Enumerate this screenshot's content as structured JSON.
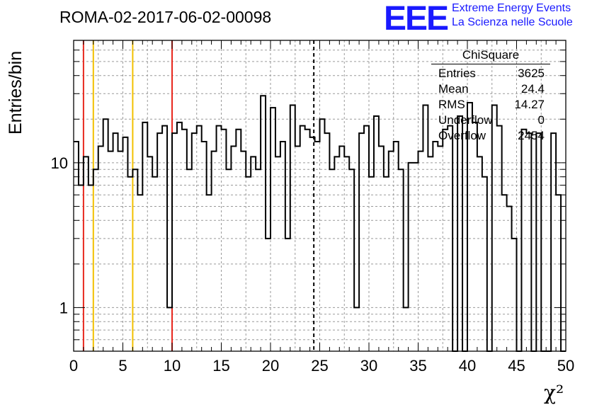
{
  "title": "ROMA-02-2017-06-02-00098",
  "brand": {
    "logo_text": "EEE",
    "line1": "Extreme Energy Events",
    "line2": "La Scienza nelle Scuole"
  },
  "stats": {
    "header": "ChiSquare",
    "rows": [
      {
        "label": "Entries",
        "value": "3625"
      },
      {
        "label": "Mean",
        "value": "24.4"
      },
      {
        "label": "RMS",
        "value": "14.27"
      },
      {
        "label": "Underflow",
        "value": "0"
      },
      {
        "label": "Overflow",
        "value": "2454"
      }
    ]
  },
  "chart_data": {
    "type": "histogram",
    "xlabel": "χ²",
    "ylabel": "Entries/bin",
    "xlim": [
      0,
      50
    ],
    "ylim": [
      0.5,
      70
    ],
    "yscale": "log",
    "grid": true,
    "bin_width": 0.5,
    "x_ticks": [
      "0",
      "5",
      "10",
      "15",
      "20",
      "25",
      "30",
      "35",
      "40",
      "45",
      "50"
    ],
    "y_ticks": [
      {
        "value": 1,
        "label": "1"
      },
      {
        "value": 10,
        "label": "10"
      }
    ],
    "values": [
      14,
      7,
      11,
      7,
      9,
      13,
      20,
      12,
      16,
      12,
      15,
      8,
      9,
      6,
      19,
      11,
      8,
      16,
      18,
      1,
      16,
      19,
      17,
      9,
      16,
      18,
      14,
      6,
      12,
      18,
      17,
      9,
      13,
      17,
      12,
      8,
      11,
      9,
      29,
      3,
      24,
      11,
      14,
      3,
      25,
      13,
      18,
      17,
      15,
      14,
      20,
      16,
      9,
      11,
      13,
      11,
      9,
      1,
      16,
      18,
      8,
      21,
      13,
      8,
      12,
      14,
      9,
      1,
      10,
      10,
      12,
      25,
      11,
      14,
      13,
      17,
      18,
      0,
      21,
      0,
      26,
      19,
      11,
      8,
      0,
      25,
      18,
      6,
      5,
      3,
      0,
      17,
      16,
      0,
      16,
      0,
      0,
      16,
      6,
      0
    ],
    "reference_lines": [
      {
        "x": 1,
        "color": "#e8281e",
        "style": "solid"
      },
      {
        "x": 2,
        "color": "#f2c000",
        "style": "solid"
      },
      {
        "x": 6,
        "color": "#f2c000",
        "style": "solid"
      },
      {
        "x": 10,
        "color": "#e8281e",
        "style": "solid"
      },
      {
        "x": 24.4,
        "color": "#000000",
        "style": "dashed"
      }
    ]
  }
}
